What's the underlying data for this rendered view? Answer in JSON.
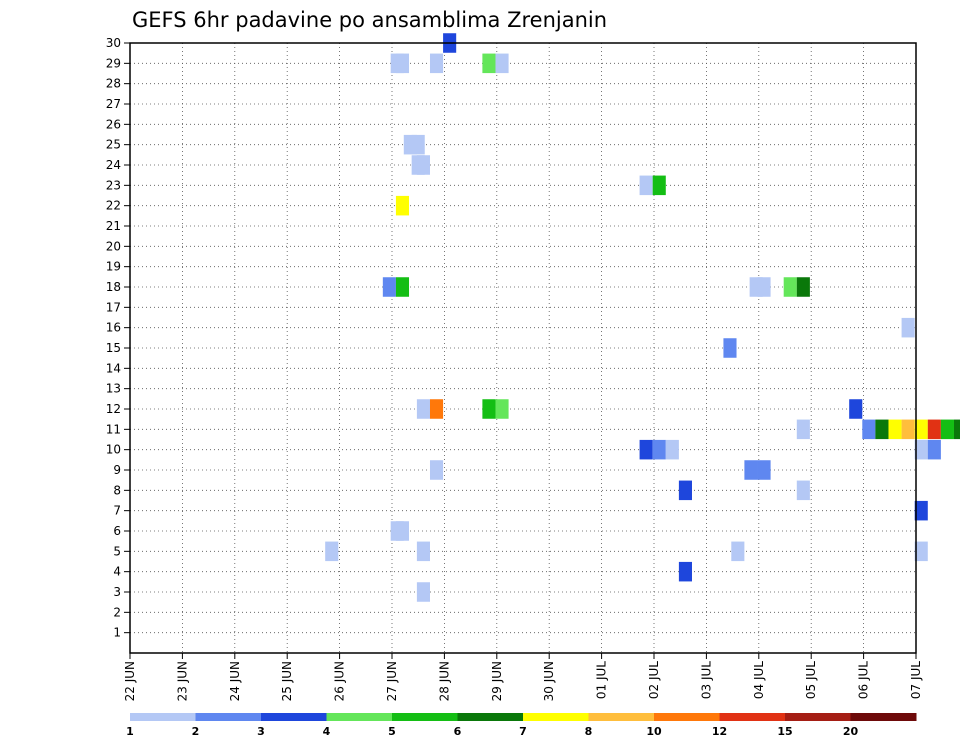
{
  "chart_data": {
    "type": "heatmap",
    "title": "GEFS 6hr padavine po ansamblima Zrenjanin",
    "xlabel": "",
    "ylabel": "",
    "x_tick_labels": [
      "22 JUN",
      "23 JUN",
      "24 JUN",
      "25 JUN",
      "26 JUN",
      "27 JUN",
      "28 JUN",
      "29 JUN",
      "30 JUN",
      "01 JUL",
      "02 JUL",
      "03 JUL",
      "04 JUL",
      "05 JUL",
      "06 JUL",
      "07 JUL"
    ],
    "y_tick_labels": [
      "1",
      "2",
      "3",
      "4",
      "5",
      "6",
      "7",
      "8",
      "9",
      "10",
      "11",
      "12",
      "13",
      "14",
      "15",
      "16",
      "17",
      "18",
      "19",
      "20",
      "21",
      "22",
      "23",
      "24",
      "25",
      "26",
      "27",
      "28",
      "29",
      "30"
    ],
    "ylim": [
      0,
      30
    ],
    "grid": true,
    "colorbar": {
      "colors": [
        "#b4c8f5",
        "#5f87f0",
        "#1e46dc",
        "#64e65a",
        "#14be14",
        "#0a780a",
        "#ffff00",
        "#ffbe3c",
        "#ff780a",
        "#e13214",
        "#a51e14",
        "#6e0a0a"
      ],
      "labels": [
        "1",
        "2",
        "3",
        "4",
        "5",
        "6",
        "7",
        "8",
        "10",
        "12",
        "15",
        "20"
      ]
    },
    "points": [
      {
        "day": 5.1,
        "m": 29,
        "c": 0
      },
      {
        "day": 5.2,
        "m": 29,
        "c": 0
      },
      {
        "day": 5.85,
        "m": 29,
        "c": 0
      },
      {
        "day": 6.85,
        "m": 29,
        "c": 3
      },
      {
        "day": 7.1,
        "m": 29,
        "c": 0
      },
      {
        "day": 6.1,
        "m": 30,
        "c": 2
      },
      {
        "day": 5.35,
        "m": 25,
        "c": 0
      },
      {
        "day": 5.5,
        "m": 25,
        "c": 0
      },
      {
        "day": 5.5,
        "m": 24,
        "c": 0
      },
      {
        "day": 5.6,
        "m": 24,
        "c": 0
      },
      {
        "day": 9.85,
        "m": 23,
        "c": 0
      },
      {
        "day": 10.1,
        "m": 23,
        "c": 4
      },
      {
        "day": 5.2,
        "m": 22,
        "c": 6
      },
      {
        "day": 4.95,
        "m": 18,
        "c": 1
      },
      {
        "day": 5.2,
        "m": 18,
        "c": 4
      },
      {
        "day": 11.95,
        "m": 18,
        "c": 0
      },
      {
        "day": 12.1,
        "m": 18,
        "c": 0
      },
      {
        "day": 12.6,
        "m": 18,
        "c": 3
      },
      {
        "day": 12.85,
        "m": 18,
        "c": 5
      },
      {
        "day": 14.85,
        "m": 16,
        "c": 0
      },
      {
        "day": 11.45,
        "m": 15,
        "c": 1
      },
      {
        "day": 5.6,
        "m": 12,
        "c": 0
      },
      {
        "day": 5.85,
        "m": 12,
        "c": 8
      },
      {
        "day": 6.85,
        "m": 12,
        "c": 4
      },
      {
        "day": 7.1,
        "m": 12,
        "c": 3
      },
      {
        "day": 13.85,
        "m": 12,
        "c": 2
      },
      {
        "day": 12.85,
        "m": 11,
        "c": 0
      },
      {
        "day": 14.1,
        "m": 11,
        "c": 1
      },
      {
        "day": 14.35,
        "m": 11,
        "c": 5
      },
      {
        "day": 14.6,
        "m": 11,
        "c": 6
      },
      {
        "day": 14.85,
        "m": 11,
        "c": 7
      },
      {
        "day": 15.1,
        "m": 11,
        "c": 6
      },
      {
        "day": 15.35,
        "m": 11,
        "c": 9
      },
      {
        "day": 15.6,
        "m": 11,
        "c": 4
      },
      {
        "day": 15.85,
        "m": 11,
        "c": 5
      },
      {
        "day": 9.85,
        "m": 10,
        "c": 2
      },
      {
        "day": 10.1,
        "m": 10,
        "c": 1
      },
      {
        "day": 10.35,
        "m": 10,
        "c": 0
      },
      {
        "day": 15.1,
        "m": 10,
        "c": 0
      },
      {
        "day": 15.35,
        "m": 10,
        "c": 1
      },
      {
        "day": 5.85,
        "m": 9,
        "c": 0
      },
      {
        "day": 11.85,
        "m": 9,
        "c": 1
      },
      {
        "day": 12.1,
        "m": 9,
        "c": 1
      },
      {
        "day": 10.6,
        "m": 8,
        "c": 2
      },
      {
        "day": 12.85,
        "m": 8,
        "c": 0
      },
      {
        "day": 15.1,
        "m": 7,
        "c": 2
      },
      {
        "day": 5.1,
        "m": 6,
        "c": 0
      },
      {
        "day": 5.2,
        "m": 6,
        "c": 0
      },
      {
        "day": 3.85,
        "m": 5,
        "c": 0
      },
      {
        "day": 5.6,
        "m": 5,
        "c": 0
      },
      {
        "day": 11.6,
        "m": 5,
        "c": 0
      },
      {
        "day": 15.1,
        "m": 5,
        "c": 0
      },
      {
        "day": 10.6,
        "m": 4,
        "c": 2
      },
      {
        "day": 5.6,
        "m": 3,
        "c": 0
      }
    ]
  }
}
